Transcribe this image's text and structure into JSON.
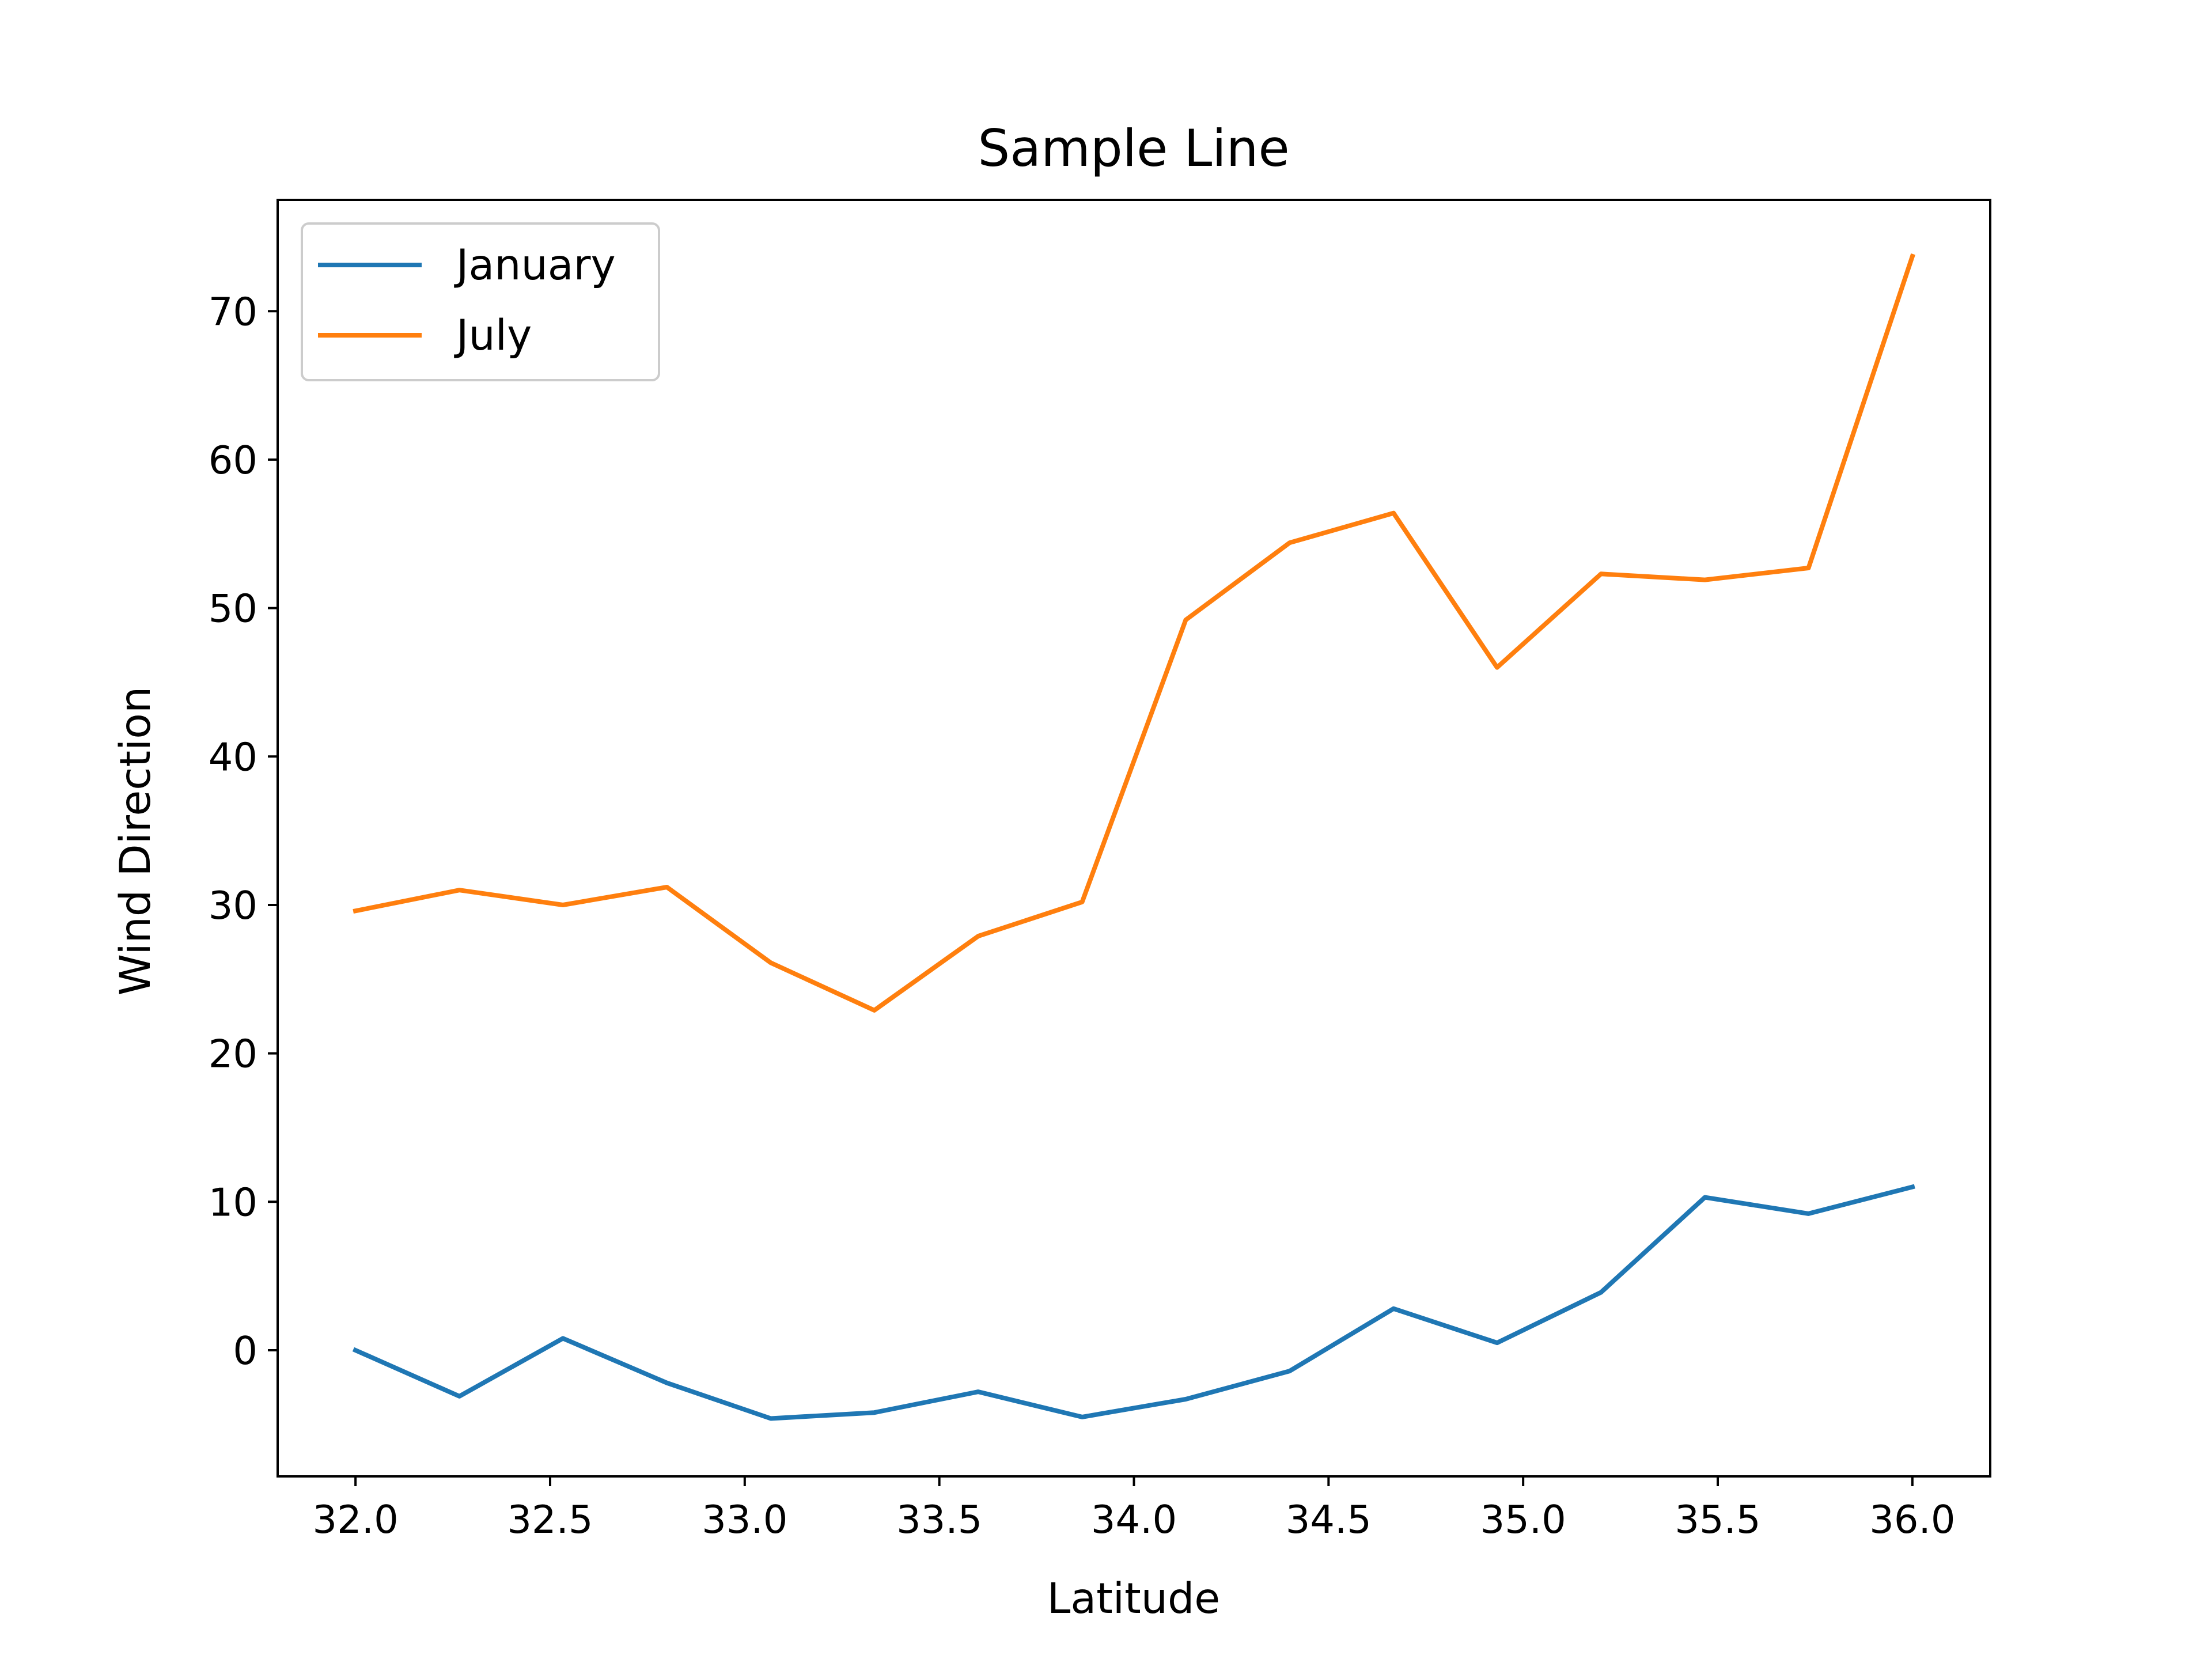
{
  "chart_data": {
    "type": "line",
    "title": "Sample Line",
    "xlabel": "Latitude",
    "ylabel": "Wind Direction",
    "xlim": [
      31.8,
      36.2
    ],
    "ylim": [
      -8.5,
      77.5
    ],
    "xticks": [
      32.0,
      32.5,
      33.0,
      33.5,
      34.0,
      34.5,
      35.0,
      35.5,
      36.0
    ],
    "xtick_labels": [
      "32.0",
      "32.5",
      "33.0",
      "33.5",
      "34.0",
      "34.5",
      "35.0",
      "35.5",
      "36.0"
    ],
    "yticks": [
      0,
      10,
      20,
      30,
      40,
      50,
      60,
      70
    ],
    "ytick_labels": [
      "0",
      "10",
      "20",
      "30",
      "40",
      "50",
      "60",
      "70"
    ],
    "grid": false,
    "legend": {
      "position": "top-left"
    },
    "x": [
      32.0,
      32.267,
      32.533,
      32.8,
      33.067,
      33.333,
      33.6,
      33.867,
      34.133,
      34.4,
      34.667,
      34.933,
      35.2,
      35.467,
      35.733,
      36.0
    ],
    "series": [
      {
        "name": "January",
        "color": "#1f77b4",
        "values": [
          0.0,
          -3.1,
          0.8,
          -2.2,
          -4.6,
          -4.2,
          -2.8,
          -4.5,
          -3.3,
          -1.4,
          2.8,
          0.5,
          3.9,
          10.3,
          9.2,
          11.0
        ]
      },
      {
        "name": "July",
        "color": "#ff7f0e",
        "values": [
          29.6,
          31.0,
          30.0,
          31.2,
          26.1,
          22.9,
          27.9,
          30.2,
          49.2,
          54.4,
          56.4,
          46.0,
          52.3,
          51.9,
          52.7,
          73.7
        ]
      }
    ]
  }
}
